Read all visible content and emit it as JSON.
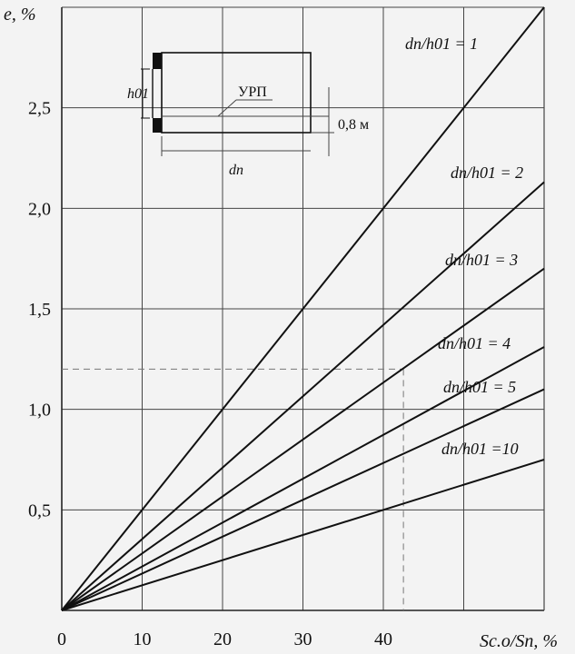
{
  "chart_data": {
    "type": "line",
    "title": "",
    "ylabel": "e, %",
    "xlabel": "Sс.о/Sп, %",
    "xlim": [
      0,
      60
    ],
    "ylim": [
      0,
      3.0
    ],
    "x_ticks": [
      0,
      10,
      20,
      30,
      40
    ],
    "x_tick_labels": [
      "0",
      "10",
      "20",
      "30",
      "40"
    ],
    "y_ticks": [
      0.5,
      1.0,
      1.5,
      2.0,
      2.5
    ],
    "y_tick_labels": [
      "0,5",
      "1,0",
      "1,5",
      "2,0",
      "2,5"
    ],
    "grid": true,
    "series": [
      {
        "name": "dп/h01 = 1",
        "x": [
          0,
          60
        ],
        "y": [
          0,
          3.0
        ]
      },
      {
        "name": "dп/h01 = 2",
        "x": [
          0,
          60
        ],
        "y": [
          0,
          2.13
        ]
      },
      {
        "name": "dп/h01 = 3",
        "x": [
          0,
          60
        ],
        "y": [
          0,
          1.7
        ]
      },
      {
        "name": "dп/h01 = 4",
        "x": [
          0,
          60
        ],
        "y": [
          0,
          1.31
        ]
      },
      {
        "name": "dп/h01 = 5",
        "x": [
          0,
          60
        ],
        "y": [
          0,
          1.1
        ]
      },
      {
        "name": "dп/h01 =10",
        "x": [
          0,
          60
        ],
        "y": [
          0,
          0.75
        ]
      }
    ],
    "annotations": [
      {
        "type": "dashed-guide",
        "x": 42.5,
        "y": 1.2
      }
    ]
  },
  "inset": {
    "h_label": "h01",
    "urp_label": "УРП",
    "offset_label": "0,8 м",
    "d_label": "dп"
  }
}
